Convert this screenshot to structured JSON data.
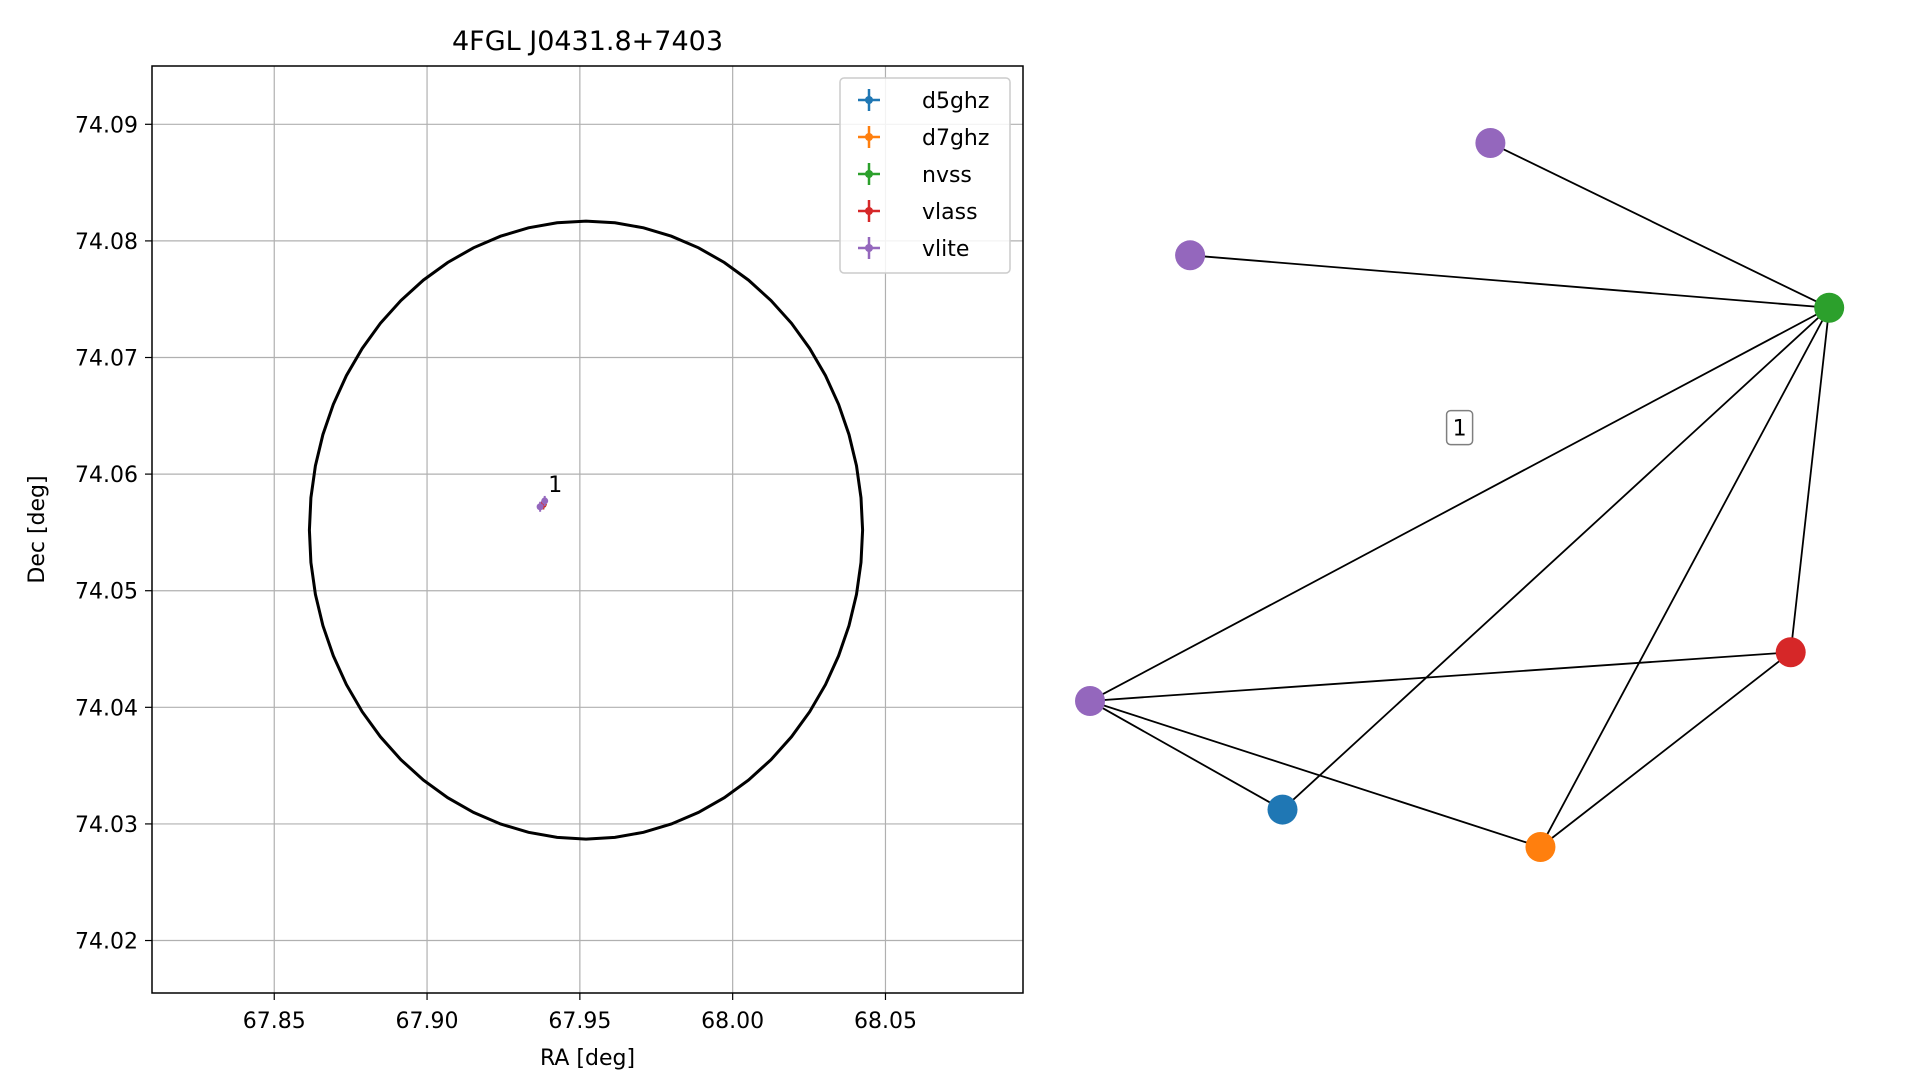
{
  "chart_data": [
    {
      "type": "scatter",
      "title": "4FGL J0431.8+7403",
      "xlabel": "RA [deg]",
      "ylabel": "Dec [deg]",
      "xlim": [
        67.81,
        68.095
      ],
      "ylim": [
        74.0155,
        74.095
      ],
      "xticks": [
        67.85,
        67.9,
        67.95,
        68.0,
        68.05
      ],
      "xtick_labels": [
        "67.85",
        "67.90",
        "67.95",
        "68.00",
        "68.05"
      ],
      "yticks": [
        74.02,
        74.03,
        74.04,
        74.05,
        74.06,
        74.07,
        74.08,
        74.09
      ],
      "ytick_labels": [
        "74.02",
        "74.03",
        "74.04",
        "74.05",
        "74.06",
        "74.07",
        "74.08",
        "74.09"
      ],
      "grid": true,
      "legend_position": "top-right",
      "series": [
        {
          "name": "d5ghz",
          "color": "#1f77b4",
          "points": [
            {
              "x": 67.938,
              "y": 74.0574
            }
          ]
        },
        {
          "name": "d7ghz",
          "color": "#ff7f0e",
          "points": [
            {
              "x": 67.938,
              "y": 74.0574
            }
          ]
        },
        {
          "name": "nvss",
          "color": "#2ca02c",
          "points": [
            {
              "x": 67.938,
              "y": 74.0574
            }
          ]
        },
        {
          "name": "vlass",
          "color": "#d62728",
          "points": [
            {
              "x": 67.938,
              "y": 74.0574
            }
          ]
        },
        {
          "name": "vlite",
          "color": "#9467bd",
          "points": [
            {
              "x": 67.9385,
              "y": 74.0577
            },
            {
              "x": 67.937,
              "y": 74.0572
            }
          ]
        }
      ],
      "source_label": {
        "text": "1",
        "x": 67.939,
        "y": 74.0583
      },
      "ellipse": {
        "center_x": 67.952,
        "center_y": 74.0552,
        "semi_x": 0.0905,
        "semi_y": 0.0265,
        "color": "#000000"
      }
    },
    {
      "type": "network",
      "nodes": [
        {
          "id": "vlite_top",
          "color": "#9467bd",
          "x": 0.52,
          "y": 0.96
        },
        {
          "id": "vlite_left",
          "color": "#9467bd",
          "x": 0.13,
          "y": 0.81
        },
        {
          "id": "nvss",
          "color": "#2ca02c",
          "x": 0.96,
          "y": 0.74
        },
        {
          "id": "vlass",
          "color": "#d62728",
          "x": 0.91,
          "y": 0.28
        },
        {
          "id": "vlite_bottom",
          "color": "#9467bd",
          "x": 0.0,
          "y": 0.215
        },
        {
          "id": "d5ghz",
          "color": "#1f77b4",
          "x": 0.25,
          "y": 0.07
        },
        {
          "id": "d7ghz",
          "color": "#ff7f0e",
          "x": 0.585,
          "y": 0.02
        }
      ],
      "edges": [
        [
          "vlite_top",
          "nvss"
        ],
        [
          "vlite_left",
          "nvss"
        ],
        [
          "nvss",
          "vlite_bottom"
        ],
        [
          "nvss",
          "d5ghz"
        ],
        [
          "nvss",
          "d7ghz"
        ],
        [
          "nvss",
          "vlass"
        ],
        [
          "vlite_bottom",
          "vlass"
        ],
        [
          "vlite_bottom",
          "d5ghz"
        ],
        [
          "vlite_bottom",
          "d7ghz"
        ],
        [
          "vlass",
          "d7ghz"
        ]
      ],
      "group_label": {
        "text": "1",
        "x": 0.48,
        "y": 0.58
      }
    }
  ]
}
